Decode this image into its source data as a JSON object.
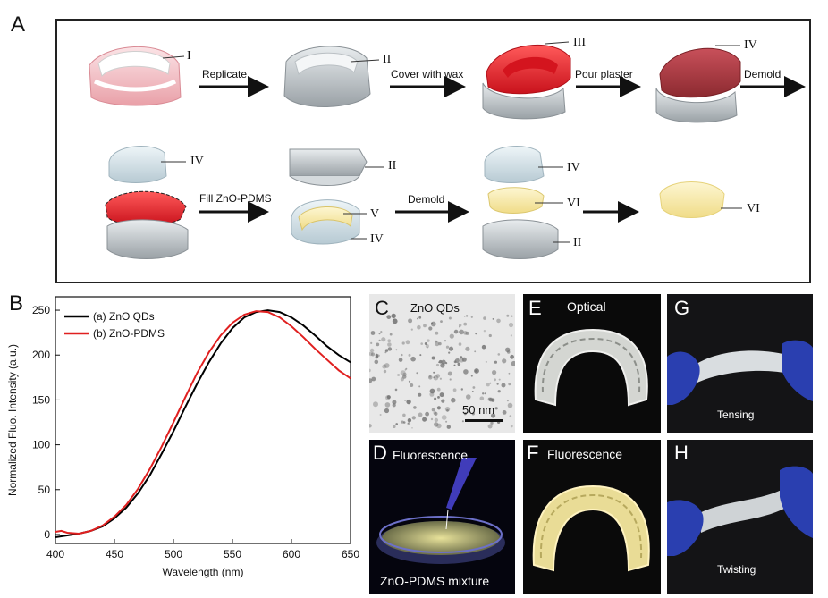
{
  "panels": {
    "A": "A",
    "B": "B",
    "C": "C",
    "D": "D",
    "E": "E",
    "F": "F",
    "G": "G",
    "H": "H"
  },
  "schematic": {
    "steps": [
      "Replicate",
      "Cover with wax",
      "Pour plaster",
      "Demold",
      "Fill ZnO-PDMS",
      "Demold"
    ],
    "labels": {
      "r1_I": "I",
      "r1_II": "II",
      "r1_III": "III",
      "r1_IV": "IV",
      "r2_IV_a": "IV",
      "r2_II_a": "II",
      "r2_V": "V",
      "r2_IV_b": "IV",
      "r2_IV_c": "IV",
      "r2_VI_a": "VI",
      "r2_II_b": "II",
      "r2_VI_b": "VI"
    }
  },
  "photos": {
    "C_title": "ZnO QDs",
    "C_scale": "50 nm",
    "D_title": "Fluorescence",
    "D_caption": "ZnO-PDMS mixture",
    "E_title": "Optical",
    "F_title": "Fluorescence",
    "G_caption": "Tensing",
    "H_caption": "Twisting"
  },
  "colors": {
    "series_a": "#000000",
    "series_b": "#e02020",
    "wax": "#e8202a",
    "plaster": "#c9d8e0",
    "cast": "#f5e9a8"
  },
  "chart_data": {
    "type": "line",
    "xlabel": "Wavelength (nm)",
    "ylabel": "Normalized Fluo. Intensity (a.u.)",
    "xlim": [
      400,
      650
    ],
    "ylim": [
      -10,
      265
    ],
    "xticks": [
      400,
      450,
      500,
      550,
      600,
      650
    ],
    "yticks": [
      0,
      50,
      100,
      150,
      200,
      250
    ],
    "legend": "top-left",
    "series": [
      {
        "name": "(a) ZnO QDs",
        "x": [
          400,
          410,
          420,
          430,
          440,
          450,
          460,
          470,
          480,
          490,
          500,
          510,
          520,
          530,
          540,
          550,
          560,
          570,
          580,
          590,
          600,
          610,
          620,
          630,
          640,
          650
        ],
        "y": [
          -3,
          -1,
          1,
          4,
          9,
          18,
          30,
          46,
          66,
          90,
          115,
          142,
          168,
          192,
          213,
          230,
          242,
          248,
          250,
          248,
          242,
          233,
          222,
          210,
          200,
          192
        ]
      },
      {
        "name": "(b) ZnO-PDMS",
        "x": [
          400,
          405,
          410,
          420,
          430,
          440,
          450,
          460,
          470,
          480,
          490,
          500,
          510,
          520,
          530,
          540,
          550,
          560,
          570,
          580,
          590,
          600,
          610,
          620,
          630,
          640,
          650
        ],
        "y": [
          3,
          4,
          2,
          1,
          4,
          10,
          20,
          33,
          51,
          73,
          98,
          125,
          153,
          180,
          203,
          222,
          236,
          245,
          249,
          248,
          242,
          232,
          220,
          207,
          195,
          183,
          174
        ]
      }
    ]
  }
}
